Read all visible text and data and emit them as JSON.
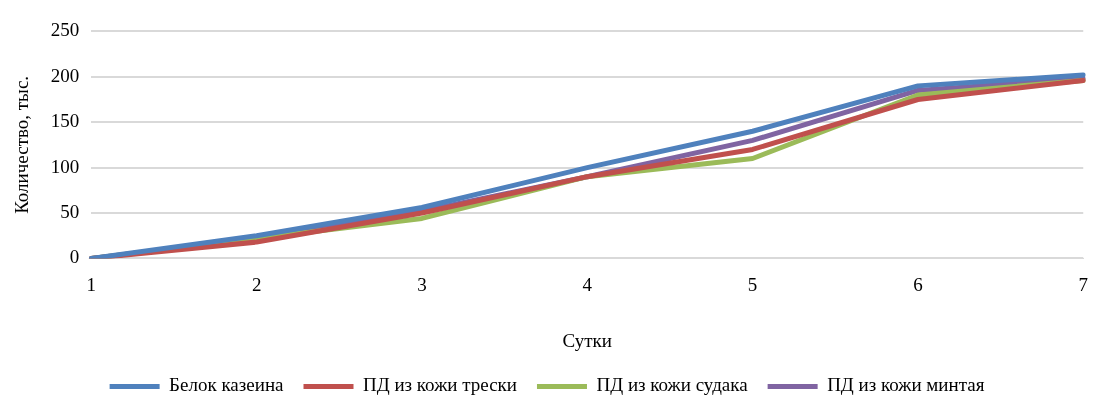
{
  "chart_data": {
    "type": "line",
    "xlabel": "Сутки",
    "ylabel": "Количество, тыс.",
    "categories": [
      "1",
      "2",
      "3",
      "4",
      "5",
      "6",
      "7"
    ],
    "series": [
      {
        "name": "Белок казеина",
        "color": "#4f81bd",
        "values": [
          0,
          25,
          56,
          100,
          140,
          190,
          202
        ]
      },
      {
        "name": "ПД из кожи трески",
        "color": "#c0504d",
        "values": [
          0,
          18,
          50,
          90,
          120,
          175,
          196
        ]
      },
      {
        "name": "ПД из кожи судака",
        "color": "#9bbb59",
        "values": [
          0,
          22,
          44,
          90,
          110,
          180,
          196
        ]
      },
      {
        "name": "ПД из кожи минтая",
        "color": "#8064a2",
        "values": [
          0,
          22,
          52,
          90,
          130,
          185,
          198
        ]
      }
    ],
    "ylim": [
      0,
      250
    ],
    "yticks": [
      0,
      50,
      100,
      150,
      200,
      250
    ],
    "grid": "y",
    "legend": "bottom",
    "marker": "none",
    "line_style": "solid"
  }
}
